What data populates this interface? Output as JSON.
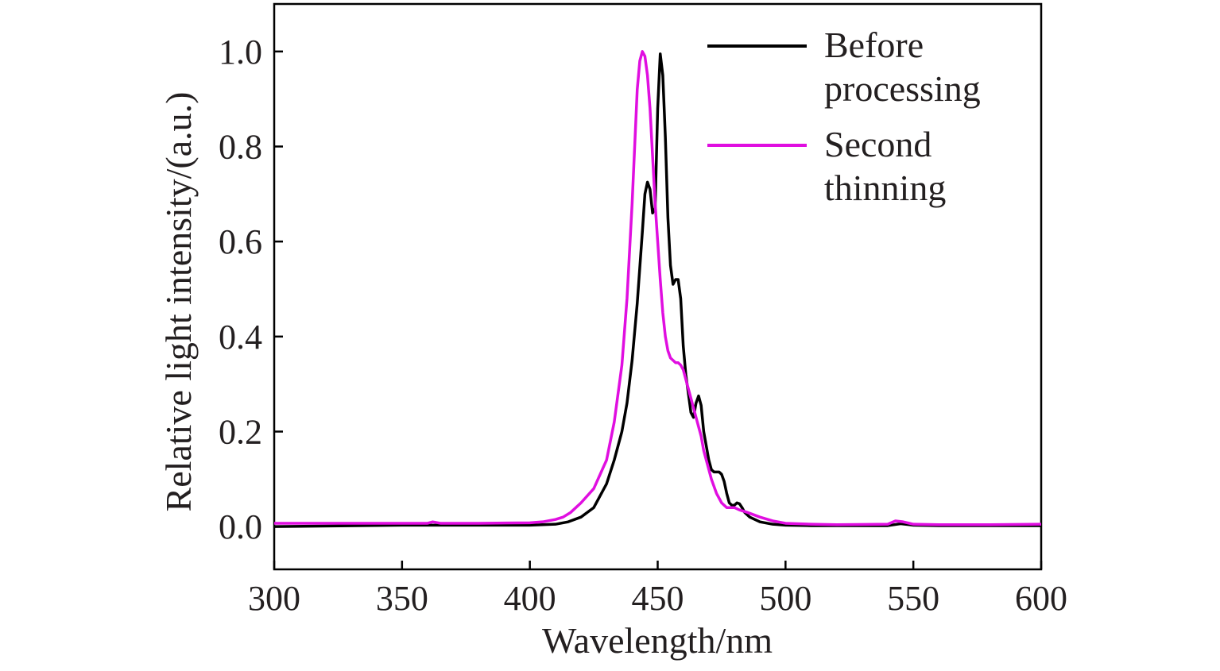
{
  "chart_data": {
    "type": "line",
    "title": "",
    "xlabel": "Wavelength/nm",
    "ylabel": "Relative light intensity/(a.u.)",
    "xlim": [
      300,
      600
    ],
    "ylim": [
      -0.09,
      1.1
    ],
    "xticks": [
      300,
      350,
      400,
      450,
      500,
      550,
      600
    ],
    "xtick_labels": [
      "300",
      "350",
      "400",
      "450",
      "500",
      "550",
      "600"
    ],
    "yticks": [
      0.0,
      0.2,
      0.4,
      0.6,
      0.8,
      1.0
    ],
    "ytick_labels": [
      "0.0",
      "0.2",
      "0.4",
      "0.6",
      "0.8",
      "1.0"
    ],
    "grid": false,
    "legend_position": "top-right",
    "series": [
      {
        "name": "Before\nprocessing",
        "legend_lines": [
          "Before",
          "processing"
        ],
        "color": "#000000",
        "x": [
          300,
          350,
          400,
          410,
          415,
          420,
          425,
          430,
          433,
          436,
          438,
          440,
          442,
          444,
          445,
          446,
          447,
          448,
          449,
          450,
          451,
          452,
          453,
          454,
          455,
          456,
          457,
          458,
          459,
          460,
          461,
          462,
          463,
          464,
          465,
          466,
          467,
          468,
          469,
          470,
          471,
          472,
          473,
          474,
          475,
          476,
          477,
          478,
          479,
          480,
          481,
          482,
          483,
          484,
          486,
          488,
          490,
          495,
          500,
          510,
          520,
          540,
          545,
          550,
          560,
          580,
          600
        ],
        "y": [
          0.0,
          0.003,
          0.003,
          0.005,
          0.01,
          0.02,
          0.04,
          0.09,
          0.14,
          0.2,
          0.26,
          0.35,
          0.47,
          0.62,
          0.7,
          0.725,
          0.71,
          0.66,
          0.67,
          0.88,
          0.995,
          0.95,
          0.82,
          0.65,
          0.55,
          0.51,
          0.52,
          0.52,
          0.48,
          0.38,
          0.32,
          0.28,
          0.24,
          0.23,
          0.26,
          0.275,
          0.255,
          0.2,
          0.17,
          0.14,
          0.12,
          0.115,
          0.115,
          0.115,
          0.11,
          0.095,
          0.07,
          0.05,
          0.045,
          0.045,
          0.05,
          0.048,
          0.04,
          0.03,
          0.02,
          0.015,
          0.01,
          0.005,
          0.003,
          0.002,
          0.002,
          0.002,
          0.006,
          0.003,
          0.002,
          0.002,
          0.002
        ]
      },
      {
        "name": "Second\nthinning",
        "legend_lines": [
          "Second",
          "thinning"
        ],
        "color": "#e00ee0",
        "x": [
          300,
          330,
          360,
          362,
          365,
          380,
          400,
          405,
          410,
          413,
          416,
          420,
          425,
          430,
          433,
          436,
          438,
          440,
          441,
          442,
          443,
          444,
          445,
          446,
          447,
          448,
          449,
          450,
          451,
          452,
          453,
          454,
          455,
          456,
          457,
          458,
          459,
          460,
          461,
          462,
          463,
          464,
          465,
          466,
          467,
          468,
          469,
          470,
          471,
          472,
          473,
          474,
          475,
          476,
          477,
          478,
          480,
          482,
          485,
          490,
          495,
          500,
          510,
          520,
          540,
          543,
          546,
          550,
          560,
          580,
          600
        ],
        "y": [
          0.007,
          0.007,
          0.007,
          0.01,
          0.007,
          0.007,
          0.008,
          0.01,
          0.015,
          0.02,
          0.03,
          0.05,
          0.08,
          0.14,
          0.22,
          0.34,
          0.48,
          0.68,
          0.8,
          0.92,
          0.98,
          1.0,
          0.99,
          0.95,
          0.88,
          0.78,
          0.68,
          0.6,
          0.52,
          0.45,
          0.4,
          0.37,
          0.355,
          0.35,
          0.345,
          0.345,
          0.34,
          0.33,
          0.31,
          0.29,
          0.27,
          0.25,
          0.23,
          0.21,
          0.19,
          0.16,
          0.14,
          0.12,
          0.1,
          0.085,
          0.07,
          0.06,
          0.05,
          0.045,
          0.04,
          0.04,
          0.04,
          0.035,
          0.03,
          0.02,
          0.012,
          0.007,
          0.005,
          0.004,
          0.005,
          0.012,
          0.01,
          0.005,
          0.004,
          0.004,
          0.005
        ]
      }
    ]
  }
}
